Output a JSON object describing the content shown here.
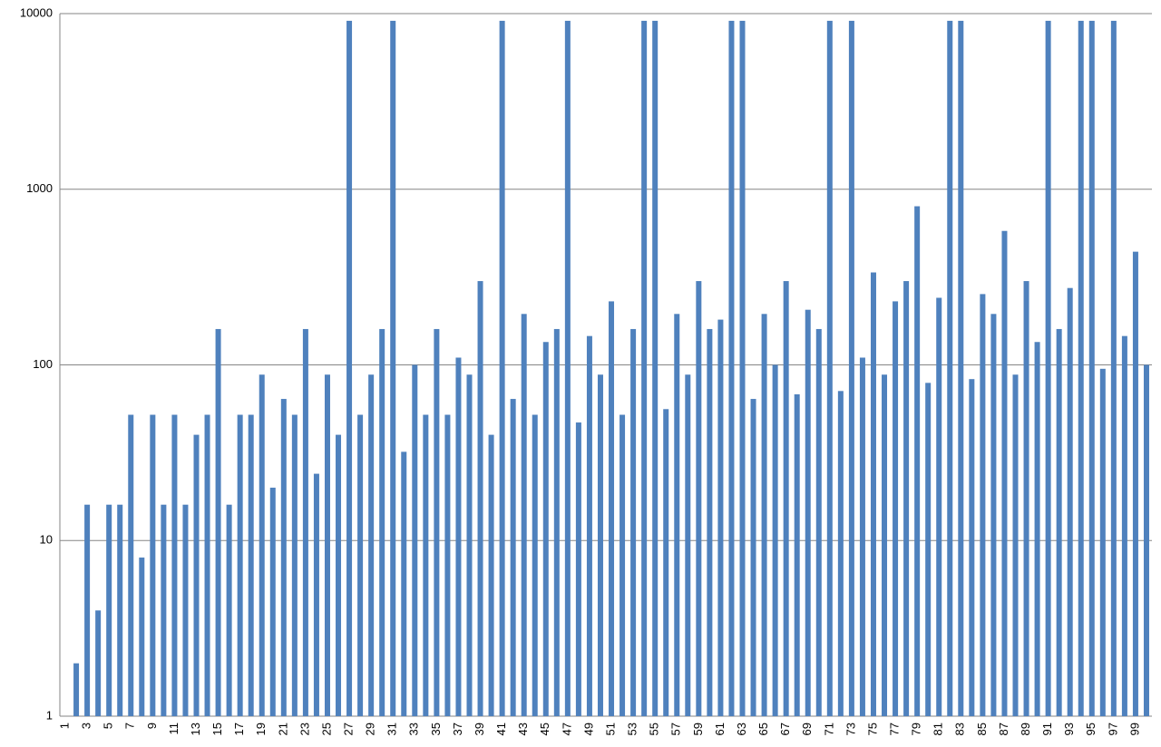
{
  "chart_data": {
    "type": "bar",
    "log_scale": true,
    "grid": true,
    "color": "#4f81bd",
    "categories": [
      "1",
      null,
      "3",
      null,
      "5",
      null,
      "7",
      null,
      "9",
      null,
      "11",
      null,
      "13",
      null,
      "15",
      null,
      "17",
      null,
      "19",
      null,
      "21",
      null,
      "23",
      null,
      "25",
      null,
      "27",
      null,
      "29",
      null,
      "31",
      null,
      "33",
      null,
      "35",
      null,
      "37",
      null,
      "39",
      null,
      "41",
      null,
      "43",
      null,
      "45",
      null,
      "47",
      null,
      "49",
      null,
      "51",
      null,
      "53",
      null,
      "55",
      null,
      "57",
      null,
      "59",
      null,
      "61",
      null,
      "63",
      null,
      "65",
      null,
      "67",
      null,
      "69",
      null,
      "71",
      null,
      "73",
      null,
      "75",
      null,
      "77",
      null,
      "79",
      null,
      "81",
      null,
      "83",
      null,
      "85",
      null,
      "87",
      null,
      "89",
      null,
      "91",
      null,
      "93",
      null,
      "95",
      null,
      "97",
      null,
      "99",
      null
    ],
    "values": [
      1,
      2,
      16,
      4,
      16,
      16,
      52,
      8,
      52,
      16,
      52,
      16,
      40,
      52,
      160,
      16,
      52,
      52,
      88,
      20,
      64,
      52,
      160,
      24,
      88,
      40,
      9100,
      52,
      88,
      160,
      9100,
      32,
      100,
      52,
      160,
      52,
      110,
      88,
      300,
      40,
      9100,
      64,
      195,
      52,
      135,
      160,
      9100,
      47,
      146,
      88,
      230,
      52,
      160,
      9100,
      9100,
      56,
      195,
      88,
      300,
      160,
      181,
      9100,
      9100,
      64,
      195,
      100,
      300,
      68,
      206,
      160,
      9100,
      71,
      9100,
      110,
      336,
      88,
      230,
      300,
      800,
      79,
      241,
      9100,
      9100,
      83,
      253,
      195,
      579,
      88,
      300,
      135,
      9100,
      160,
      274,
      9100,
      9100,
      95,
      9100,
      146,
      441,
      100
    ],
    "ylim": [
      1,
      10000
    ],
    "yticks": [
      1,
      10,
      100,
      1000,
      10000
    ]
  }
}
